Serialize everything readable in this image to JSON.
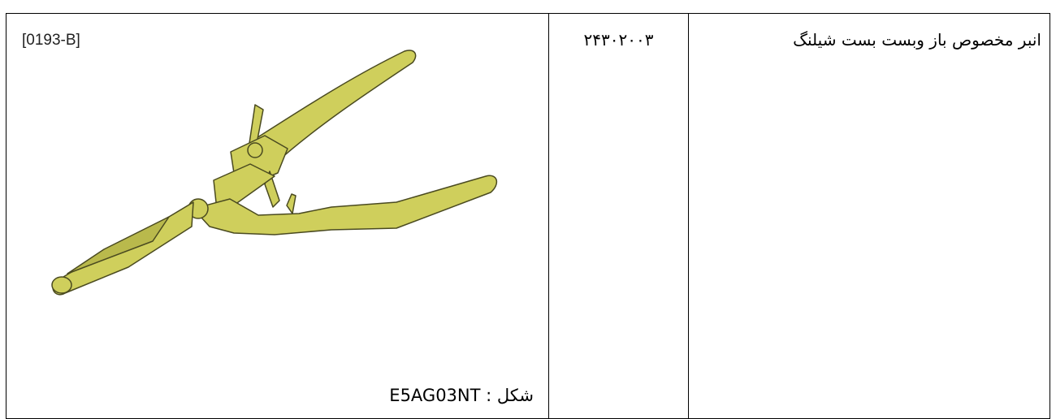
{
  "table": {
    "rows": [
      [
        {
          "label": "[0193-B]",
          "caption": "شکل : E5AG03NT"
        },
        "۲۴۳۰۲۰۰۳",
        "انبر مخصوص باز وبست بست شیلنگ"
      ]
    ]
  }
}
